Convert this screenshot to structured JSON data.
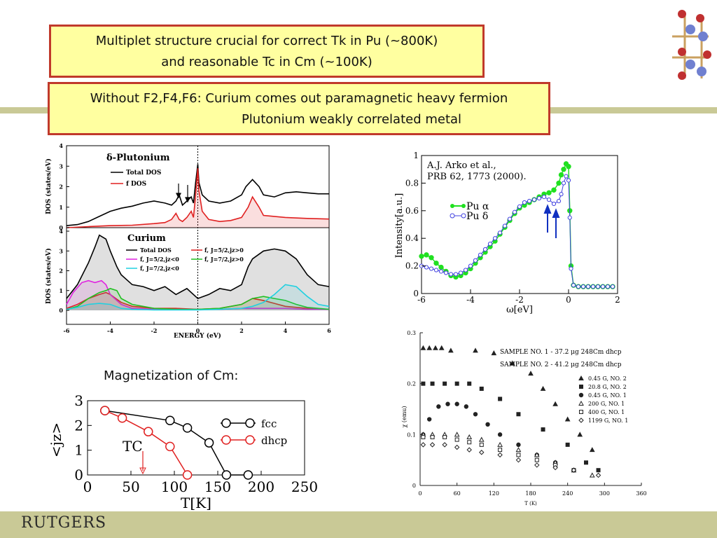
{
  "slide": {
    "box1": {
      "line1": "Multiplet structure crucial for correct Tk in Pu (~800K)",
      "line2": "and reasonable Tc in Cm (~100K)"
    },
    "box2": {
      "line1": "Without F2,F4,F6: Curium comes out paramagnetic heavy fermion",
      "line2": "Plutonium weakly correlated metal"
    },
    "magnetization_caption": "Magnetization of Cm:",
    "logo_text": "RUTGERS",
    "colors": {
      "band": "#c9c996",
      "box_fill": "#ffffa0",
      "box_border": "#c0392b"
    }
  },
  "dos_panel": {
    "top": {
      "title": "δ-Plutonium",
      "ylabel": "DOS (states/eV)",
      "yticks": [
        "0",
        "1",
        "2",
        "3",
        "4"
      ],
      "legend": [
        "Total DOS",
        "f DOS"
      ]
    },
    "bottom": {
      "title": "Curium",
      "ylabel": "DOS (states/eV)",
      "yticks": [
        "0",
        "1",
        "2",
        "3",
        "4"
      ],
      "legend": [
        "Total DOS",
        "f, J=5/2,jz>0",
        "f, J=5/2,jz<0",
        "f, J=7/2,jz>0",
        "f, J=7/2,jz<0"
      ]
    },
    "xlabel": "ENERGY (eV)",
    "xticks": [
      "-6",
      "-4",
      "-2",
      "0",
      "2",
      "4",
      "6"
    ]
  },
  "chart_data": [
    {
      "type": "line",
      "title": "δ-Plutonium",
      "ylabel": "DOS (states/eV)",
      "xlabel": "ENERGY (eV)",
      "xlim": [
        -6,
        6
      ],
      "ylim": [
        0,
        4
      ],
      "series": [
        {
          "name": "Total DOS",
          "color": "#000000",
          "x": [
            -6,
            -5.5,
            -5,
            -4.5,
            -4,
            -3.5,
            -3,
            -2.5,
            -2,
            -1.5,
            -1.2,
            -1,
            -0.85,
            -0.7,
            -0.5,
            -0.3,
            -0.2,
            -0.1,
            0,
            0.05,
            0.2,
            0.5,
            1,
            1.5,
            2,
            2.2,
            2.5,
            2.8,
            3,
            3.5,
            4,
            4.5,
            5,
            5.5,
            6
          ],
          "y": [
            0.1,
            0.15,
            0.3,
            0.55,
            0.8,
            0.95,
            1.05,
            1.2,
            1.3,
            1.2,
            1.1,
            1.3,
            1.6,
            1.1,
            1.3,
            1.5,
            1.2,
            2.2,
            3.1,
            2.2,
            1.6,
            1.3,
            1.2,
            1.3,
            1.6,
            2.0,
            2.35,
            2.0,
            1.6,
            1.5,
            1.7,
            1.75,
            1.7,
            1.65,
            1.65
          ]
        },
        {
          "name": "f DOS",
          "color": "#e02020",
          "x": [
            -6,
            -5,
            -4,
            -3,
            -2,
            -1.5,
            -1.2,
            -1,
            -0.85,
            -0.7,
            -0.5,
            -0.3,
            -0.2,
            -0.1,
            0,
            0.05,
            0.2,
            0.5,
            1,
            1.5,
            2,
            2.3,
            2.5,
            2.8,
            3,
            4,
            5,
            6
          ],
          "y": [
            0.0,
            0.05,
            0.1,
            0.12,
            0.2,
            0.25,
            0.4,
            0.7,
            0.4,
            0.3,
            0.5,
            0.8,
            0.5,
            1.6,
            2.9,
            1.8,
            0.8,
            0.4,
            0.3,
            0.35,
            0.5,
            1.0,
            1.5,
            1.0,
            0.6,
            0.5,
            0.45,
            0.42
          ]
        }
      ]
    },
    {
      "type": "line",
      "title": "Curium",
      "ylabel": "DOS (states/eV)",
      "xlabel": "ENERGY (eV)",
      "xlim": [
        -6,
        6
      ],
      "ylim": [
        0,
        4
      ],
      "series": [
        {
          "name": "Total DOS",
          "color": "#000000",
          "x": [
            -6,
            -5.5,
            -5,
            -4.7,
            -4.5,
            -4.2,
            -4,
            -3.7,
            -3.5,
            -3,
            -2.5,
            -2,
            -1.5,
            -1,
            -0.5,
            0,
            0.5,
            1,
            1.5,
            2,
            2.3,
            2.5,
            3,
            3.5,
            4,
            4.5,
            5,
            5.5,
            6
          ],
          "y": [
            0.6,
            1.3,
            2.4,
            3.2,
            3.8,
            3.6,
            3.0,
            2.2,
            1.8,
            1.3,
            1.2,
            1.0,
            1.2,
            0.8,
            1.1,
            0.6,
            0.8,
            1.1,
            1.0,
            1.3,
            2.2,
            2.6,
            3.0,
            3.1,
            3.0,
            2.6,
            1.8,
            1.3,
            1.2
          ]
        },
        {
          "name": "f, J=5/2,jz>0",
          "color": "#e02020",
          "x": [
            -6,
            -5.5,
            -5,
            -4.5,
            -4.2,
            -4,
            -3.5,
            -3,
            -2,
            -1,
            0,
            1,
            2,
            2.5,
            3,
            3.5,
            4,
            5,
            6
          ],
          "y": [
            0.1,
            0.3,
            0.6,
            0.8,
            0.9,
            0.8,
            0.4,
            0.2,
            0.1,
            0.1,
            0.05,
            0.1,
            0.3,
            0.6,
            0.5,
            0.35,
            0.2,
            0.1,
            0.05
          ]
        },
        {
          "name": "f, J=5/2,jz<0",
          "color": "#e020e0",
          "x": [
            -6,
            -5.7,
            -5.3,
            -5,
            -4.7,
            -4.4,
            -4.2,
            -4,
            -3.5,
            -3,
            -2,
            -1,
            0,
            1,
            2,
            3,
            4,
            5,
            6
          ],
          "y": [
            0.3,
            0.9,
            1.4,
            1.5,
            1.4,
            1.5,
            1.3,
            0.8,
            0.3,
            0.1,
            0.05,
            0.05,
            0.05,
            0.05,
            0.1,
            0.1,
            0.1,
            0.05,
            0.05
          ]
        },
        {
          "name": "f, J=7/2,jz>0",
          "color": "#20c020",
          "x": [
            -6,
            -5.5,
            -5,
            -4.5,
            -4.2,
            -4,
            -3.7,
            -3.5,
            -3,
            -2,
            -1,
            0,
            1,
            2,
            2.5,
            3,
            3.5,
            4,
            4.5,
            5,
            6
          ],
          "y": [
            0.05,
            0.2,
            0.6,
            0.9,
            1.0,
            1.1,
            1.0,
            0.6,
            0.3,
            0.1,
            0.05,
            0.05,
            0.1,
            0.3,
            0.6,
            0.7,
            0.6,
            0.5,
            0.3,
            0.15,
            0.05
          ]
        },
        {
          "name": "f, J=7/2,jz<0",
          "color": "#20d0e0",
          "x": [
            -6,
            -5.5,
            -5,
            -4.5,
            -4,
            -3.5,
            -3,
            -2,
            -1,
            0,
            1,
            2,
            2.5,
            3,
            3.5,
            4,
            4.5,
            5,
            5.5,
            6
          ],
          "y": [
            0.05,
            0.15,
            0.3,
            0.35,
            0.3,
            0.1,
            0.05,
            0.02,
            0.02,
            0.02,
            0.05,
            0.1,
            0.2,
            0.4,
            0.8,
            1.3,
            1.2,
            0.7,
            0.3,
            0.2
          ]
        }
      ]
    },
    {
      "type": "scatter",
      "annotation": [
        "A.J. Arko et al.,",
        "PRB 62, 1773 (2000)."
      ],
      "ylabel": "Intensity[a.u.]",
      "xlabel": "ω[eV]",
      "xlim": [
        -6,
        2
      ],
      "ylim": [
        0,
        1
      ],
      "xticks": [
        "-6",
        "-4",
        "-2",
        "0",
        "2"
      ],
      "yticks": [
        "0",
        "0.2",
        "0.4",
        "0.6",
        "0.8",
        "1"
      ],
      "series": [
        {
          "name": "Pu α",
          "color": "#20e020",
          "x": [
            -6,
            -5.8,
            -5.6,
            -5.4,
            -5.2,
            -5,
            -4.8,
            -4.6,
            -4.4,
            -4.2,
            -4,
            -3.8,
            -3.6,
            -3.4,
            -3.2,
            -3,
            -2.8,
            -2.6,
            -2.4,
            -2.2,
            -2,
            -1.8,
            -1.6,
            -1.4,
            -1.2,
            -1,
            -0.8,
            -0.6,
            -0.4,
            -0.3,
            -0.2,
            -0.1,
            0,
            0.05,
            0.1,
            0.2,
            0.4,
            0.6,
            0.8,
            1,
            1.2,
            1.4,
            1.6,
            1.8
          ],
          "y": [
            0.27,
            0.28,
            0.26,
            0.22,
            0.19,
            0.16,
            0.13,
            0.12,
            0.13,
            0.15,
            0.18,
            0.22,
            0.26,
            0.3,
            0.34,
            0.38,
            0.43,
            0.48,
            0.53,
            0.58,
            0.62,
            0.64,
            0.66,
            0.68,
            0.7,
            0.72,
            0.73,
            0.75,
            0.8,
            0.86,
            0.9,
            0.94,
            0.92,
            0.6,
            0.2,
            0.06,
            0.05,
            0.05,
            0.05,
            0.05,
            0.05,
            0.05,
            0.05,
            0.05
          ]
        },
        {
          "name": "Pu δ",
          "color": "#4040e0",
          "x": [
            -6,
            -5.8,
            -5.6,
            -5.4,
            -5.2,
            -5,
            -4.8,
            -4.6,
            -4.4,
            -4.2,
            -4,
            -3.8,
            -3.6,
            -3.4,
            -3.2,
            -3,
            -2.8,
            -2.6,
            -2.4,
            -2.2,
            -2,
            -1.8,
            -1.6,
            -1.4,
            -1.2,
            -1,
            -0.8,
            -0.6,
            -0.4,
            -0.3,
            -0.2,
            -0.1,
            0,
            0.05,
            0.1,
            0.2,
            0.4,
            0.6,
            0.8,
            1,
            1.2,
            1.4,
            1.6,
            1.8
          ],
          "y": [
            0.2,
            0.19,
            0.18,
            0.17,
            0.16,
            0.15,
            0.14,
            0.14,
            0.15,
            0.17,
            0.2,
            0.24,
            0.28,
            0.32,
            0.36,
            0.4,
            0.44,
            0.49,
            0.54,
            0.59,
            0.63,
            0.66,
            0.67,
            0.68,
            0.69,
            0.7,
            0.68,
            0.65,
            0.67,
            0.72,
            0.8,
            0.85,
            0.82,
            0.55,
            0.18,
            0.06,
            0.05,
            0.05,
            0.05,
            0.05,
            0.05,
            0.05,
            0.05,
            0.05
          ]
        }
      ]
    },
    {
      "type": "line",
      "xlabel": "T[K]",
      "ylabel": "<jz>",
      "xlim": [
        0,
        250
      ],
      "ylim": [
        0,
        3
      ],
      "xticks": [
        "0",
        "50",
        "100",
        "150",
        "200",
        "250"
      ],
      "yticks": [
        "0",
        "1",
        "2",
        "3"
      ],
      "annotation": "TC",
      "series": [
        {
          "name": "fcc",
          "color": "#000000",
          "x": [
            20,
            95,
            115,
            140,
            160,
            185
          ],
          "y": [
            2.6,
            2.2,
            1.9,
            1.3,
            0,
            0
          ]
        },
        {
          "name": "dhcp",
          "color": "#e02020",
          "x": [
            20,
            40,
            70,
            95,
            115
          ],
          "y": [
            2.6,
            2.3,
            1.75,
            1.15,
            0
          ]
        }
      ]
    },
    {
      "type": "scatter",
      "ylabel": "χ (emu)",
      "xlabel": "T (K)",
      "xlim": [
        0,
        360
      ],
      "ylim": [
        0,
        0.3
      ],
      "xticks": [
        "0",
        "60",
        "120",
        "180",
        "240",
        "300",
        "360"
      ],
      "yticks": [
        "0",
        "0.1",
        "0.2",
        "0.3"
      ],
      "header": [
        "SAMPLE NO. 1 - 37.2 μg 248Cm dhcp",
        "SAMPLE NO. 2 - 41.2 μg 248Cm dhcp"
      ],
      "series": [
        {
          "name": "0.45 G, NO. 2",
          "marker": "triangle-filled",
          "x": [
            5,
            15,
            25,
            35,
            50,
            90,
            120,
            150,
            180,
            200,
            220,
            240,
            260,
            280
          ],
          "y": [
            0.27,
            0.27,
            0.27,
            0.27,
            0.265,
            0.265,
            0.26,
            0.24,
            0.22,
            0.19,
            0.16,
            0.13,
            0.1,
            0.07
          ]
        },
        {
          "name": "20.8 G, NO. 2",
          "marker": "square-filled",
          "x": [
            5,
            20,
            40,
            60,
            80,
            100,
            130,
            160,
            200,
            240,
            270,
            290
          ],
          "y": [
            0.2,
            0.2,
            0.2,
            0.2,
            0.2,
            0.19,
            0.17,
            0.14,
            0.11,
            0.08,
            0.045,
            0.03
          ]
        },
        {
          "name": "0.45 G, NO. 1",
          "marker": "circle-filled",
          "x": [
            5,
            15,
            30,
            45,
            60,
            75,
            90,
            110,
            130,
            160,
            190,
            220,
            250
          ],
          "y": [
            0.1,
            0.13,
            0.155,
            0.16,
            0.16,
            0.155,
            0.14,
            0.12,
            0.1,
            0.08,
            0.06,
            0.045,
            0.03
          ]
        },
        {
          "name": "200 G, NO. 1",
          "marker": "triangle-open",
          "x": [
            5,
            20,
            40,
            60,
            80,
            100,
            130,
            160,
            190,
            220,
            250,
            280
          ],
          "y": [
            0.1,
            0.1,
            0.1,
            0.1,
            0.095,
            0.09,
            0.08,
            0.07,
            0.06,
            0.045,
            0.03,
            0.02
          ]
        },
        {
          "name": "400 G, NO. 1",
          "marker": "square-open",
          "x": [
            5,
            20,
            40,
            60,
            80,
            100,
            130,
            160,
            190,
            220,
            250
          ],
          "y": [
            0.095,
            0.095,
            0.095,
            0.09,
            0.085,
            0.08,
            0.07,
            0.06,
            0.05,
            0.04,
            0.03
          ]
        },
        {
          "name": "1199 G, NO. 1",
          "marker": "diamond-open",
          "x": [
            5,
            20,
            40,
            60,
            80,
            100,
            130,
            160,
            190,
            220,
            250,
            290
          ],
          "y": [
            0.08,
            0.08,
            0.08,
            0.075,
            0.07,
            0.065,
            0.06,
            0.05,
            0.04,
            0.035,
            0.03,
            0.02
          ]
        }
      ]
    }
  ]
}
